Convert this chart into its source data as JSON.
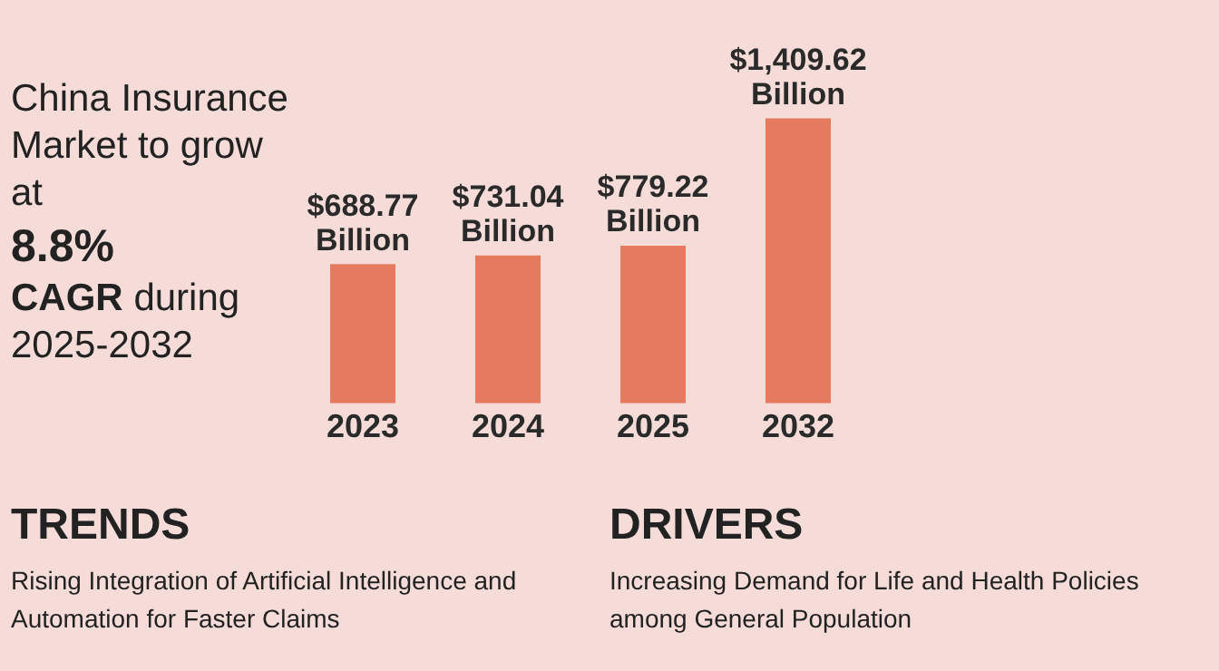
{
  "chart_data": {
    "type": "bar",
    "title": "China Insurance Market to grow at",
    "subtitle": "8.8% CAGR during 2025-2032",
    "categories": [
      "2023",
      "2024",
      "2025",
      "2032"
    ],
    "values": [
      688.77,
      731.04,
      779.22,
      1409.62
    ],
    "value_labels": [
      "$688.77 Billion",
      "$731.04 Billion",
      "$779.22 Billion",
      "$1,409.62 Billion"
    ],
    "color": "#e57a5e",
    "annotations": [
      "TRENDS",
      "Rising Integration of Artificial Intelligence and Automation for Faster Claims",
      "DRIVERS",
      "Increasing Demand for Life and Health Policies among General Population"
    ],
    "grid": false,
    "legend": false
  }
}
